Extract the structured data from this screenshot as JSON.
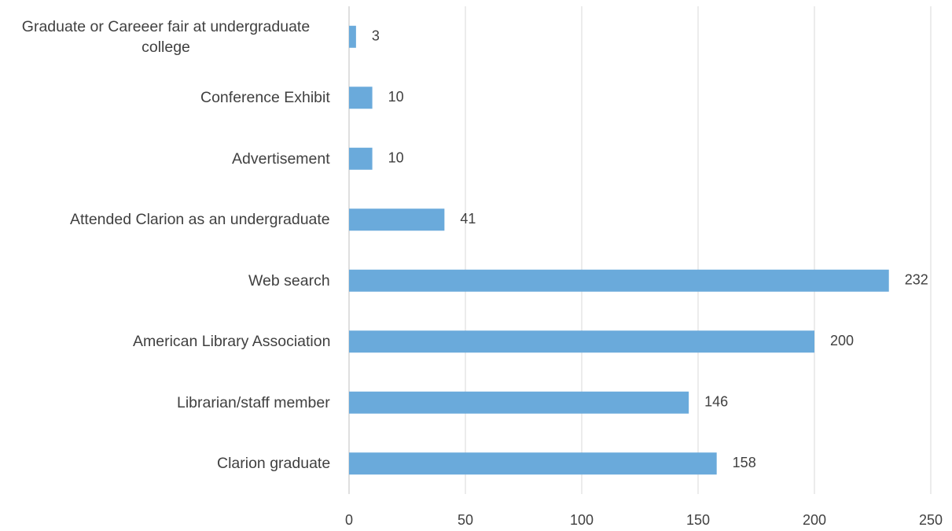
{
  "chart_data": {
    "type": "bar",
    "orientation": "horizontal",
    "categories": [
      "Graduate or Careeer fair at undergraduate college",
      "Conference Exhibit",
      "Advertisement",
      "Attended Clarion as an undergraduate",
      "Web search",
      "American Library Association",
      "Librarian/staff member",
      "Clarion graduate"
    ],
    "values": [
      3,
      10,
      10,
      41,
      232,
      200,
      146,
      158
    ],
    "color": "#6aaadb",
    "xlim": [
      0,
      250
    ],
    "xticks": [
      0,
      50,
      100,
      150,
      200,
      250
    ],
    "grid": true
  }
}
